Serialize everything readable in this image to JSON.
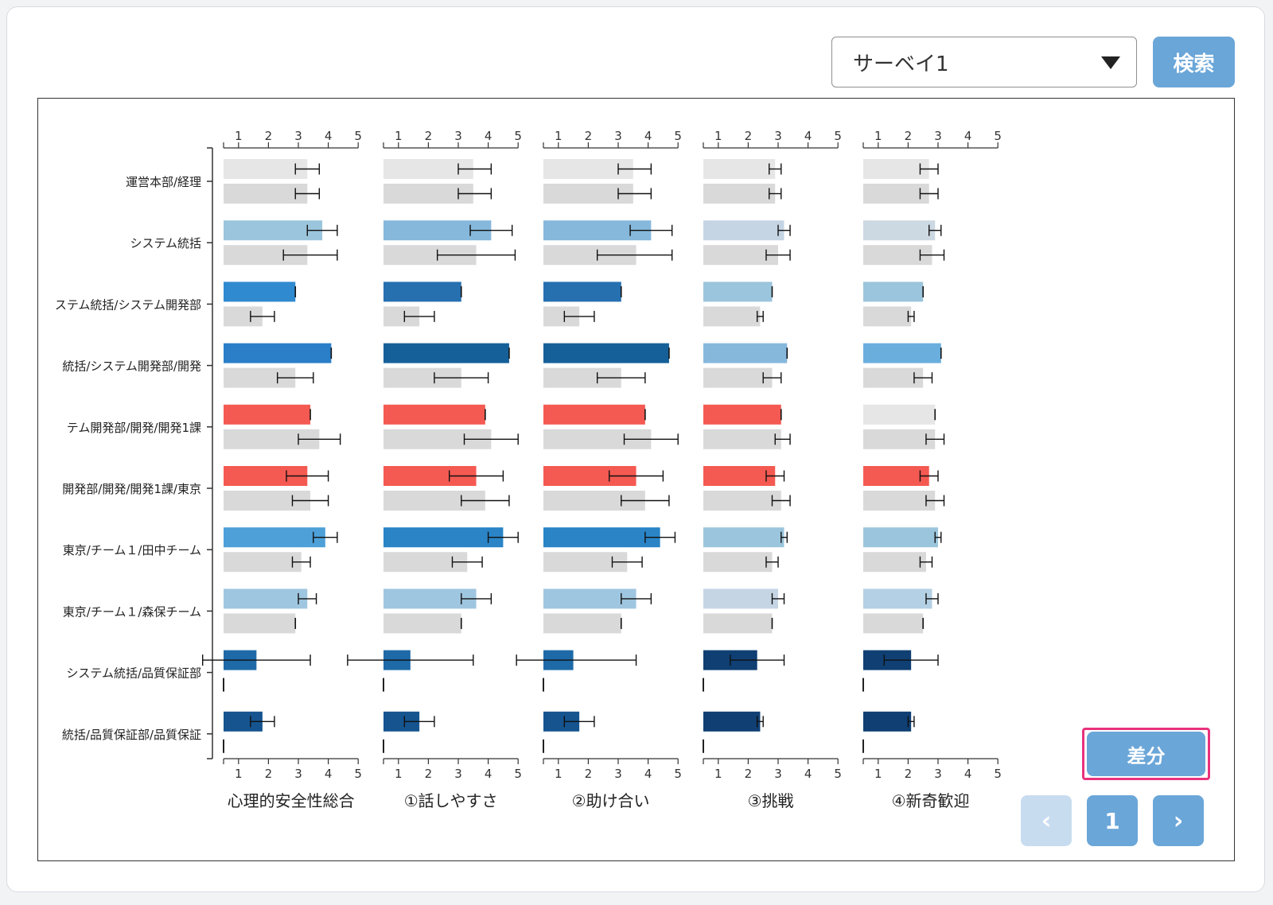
{
  "survey_select": {
    "value": "サーベイ1"
  },
  "search_label": "検索",
  "diff_label": "差分",
  "pagination": {
    "prev": "‹",
    "page": "1",
    "next": "›"
  },
  "colors": {
    "baseline_gray": "#d9d9d9",
    "light_gray": "#e6e6e6",
    "highlight_red": "#f45a52",
    "button_blue": "#6aa6d8",
    "diff_outline": "#e8327c"
  },
  "chart_data": {
    "type": "bar",
    "orientation": "horizontal",
    "xlim": [
      0.5,
      5
    ],
    "xticks": [
      1,
      2,
      3,
      4,
      5
    ],
    "categories": [
      "運営本部/経理",
      "システム統括",
      "ステム統括/システム開発部",
      "統括/システム開発部/開発",
      "テム開発部/開発/開発1課",
      "開発部/開発/開発1課/東京",
      "東京/チーム１/田中チーム",
      "東京/チーム１/森保チーム",
      "システム統括/品質保証部",
      "統括/品質保証部/品質保証"
    ],
    "panels": [
      {
        "title": "心理的安全性総合",
        "bars": [
          {
            "v": 3.3,
            "lo": 2.9,
            "hi": 3.7,
            "c": "#e6e6e6",
            "bv": 3.3,
            "blo": 2.9,
            "bhi": 3.7
          },
          {
            "v": 3.8,
            "lo": 3.3,
            "hi": 4.3,
            "c": "#9bc5dc",
            "bv": 3.3,
            "blo": 2.5,
            "bhi": 4.3
          },
          {
            "v": 2.9,
            "lo": 2.9,
            "hi": 2.9,
            "c": "#2f8ad0",
            "bv": 1.8,
            "blo": 1.4,
            "bhi": 2.2
          },
          {
            "v": 4.1,
            "lo": 4.1,
            "hi": 4.1,
            "c": "#2a7fc8",
            "bv": 2.9,
            "blo": 2.3,
            "bhi": 3.5
          },
          {
            "v": 3.4,
            "lo": 3.4,
            "hi": 3.4,
            "c": "#f45a52",
            "bv": 3.7,
            "blo": 3.0,
            "bhi": 4.4
          },
          {
            "v": 3.3,
            "lo": 2.6,
            "hi": 4.0,
            "c": "#f45a52",
            "bv": 3.4,
            "blo": 2.8,
            "bhi": 4.0
          },
          {
            "v": 3.9,
            "lo": 3.5,
            "hi": 4.3,
            "c": "#4ea0d8",
            "bv": 3.1,
            "blo": 2.8,
            "bhi": 3.4
          },
          {
            "v": 3.3,
            "lo": 3.0,
            "hi": 3.6,
            "c": "#9fc6e0",
            "bv": 2.9,
            "blo": 2.9,
            "bhi": 2.9
          },
          {
            "v": 1.6,
            "lo": -0.2,
            "hi": 3.4,
            "c": "#1e6aa8",
            "bv": null
          },
          {
            "v": 1.8,
            "lo": 1.4,
            "hi": 2.2,
            "c": "#15548f",
            "bv": null
          }
        ]
      },
      {
        "title": "①話しやすさ",
        "bars": [
          {
            "v": 3.5,
            "lo": 3.0,
            "hi": 4.1,
            "c": "#e6e6e6",
            "bv": 3.5,
            "blo": 3.0,
            "bhi": 4.1
          },
          {
            "v": 4.1,
            "lo": 3.4,
            "hi": 4.8,
            "c": "#86b8dc",
            "bv": 3.6,
            "blo": 2.3,
            "bhi": 4.9
          },
          {
            "v": 3.1,
            "lo": 3.1,
            "hi": 3.1,
            "c": "#2670b0",
            "bv": 1.7,
            "blo": 1.2,
            "bhi": 2.2
          },
          {
            "v": 4.7,
            "lo": 4.7,
            "hi": 4.7,
            "c": "#156099",
            "bv": 3.1,
            "blo": 2.2,
            "bhi": 4.0
          },
          {
            "v": 3.9,
            "lo": 3.9,
            "hi": 3.9,
            "c": "#f45a52",
            "bv": 4.1,
            "blo": 3.2,
            "bhi": 5.0
          },
          {
            "v": 3.6,
            "lo": 2.7,
            "hi": 4.5,
            "c": "#f45a52",
            "bv": 3.9,
            "blo": 3.1,
            "bhi": 4.7
          },
          {
            "v": 4.5,
            "lo": 4.0,
            "hi": 5.0,
            "c": "#2a84c6",
            "bv": 3.3,
            "blo": 2.8,
            "bhi": 3.8
          },
          {
            "v": 3.6,
            "lo": 3.1,
            "hi": 4.1,
            "c": "#9fc6e0",
            "bv": 3.1,
            "blo": 3.1,
            "bhi": 3.1
          },
          {
            "v": 1.4,
            "lo": -0.7,
            "hi": 3.5,
            "c": "#1e6aa8",
            "bv": null
          },
          {
            "v": 1.7,
            "lo": 1.2,
            "hi": 2.2,
            "c": "#15548f",
            "bv": null
          }
        ]
      },
      {
        "title": "②助け合い",
        "bars": [
          {
            "v": 3.5,
            "lo": 3.0,
            "hi": 4.1,
            "c": "#e6e6e6",
            "bv": 3.5,
            "blo": 3.0,
            "bhi": 4.1
          },
          {
            "v": 4.1,
            "lo": 3.4,
            "hi": 4.8,
            "c": "#86b8dc",
            "bv": 3.6,
            "blo": 2.3,
            "bhi": 4.8
          },
          {
            "v": 3.1,
            "lo": 3.1,
            "hi": 3.1,
            "c": "#2670b0",
            "bv": 1.7,
            "blo": 1.2,
            "bhi": 2.2
          },
          {
            "v": 4.7,
            "lo": 4.7,
            "hi": 4.7,
            "c": "#156099",
            "bv": 3.1,
            "blo": 2.3,
            "bhi": 3.9
          },
          {
            "v": 3.9,
            "lo": 3.9,
            "hi": 3.9,
            "c": "#f45a52",
            "bv": 4.1,
            "blo": 3.2,
            "bhi": 5.0
          },
          {
            "v": 3.6,
            "lo": 2.7,
            "hi": 4.5,
            "c": "#f45a52",
            "bv": 3.9,
            "blo": 3.1,
            "bhi": 4.7
          },
          {
            "v": 4.4,
            "lo": 3.9,
            "hi": 4.9,
            "c": "#2a84c6",
            "bv": 3.3,
            "blo": 2.8,
            "bhi": 3.8
          },
          {
            "v": 3.6,
            "lo": 3.1,
            "hi": 4.1,
            "c": "#9fc6e0",
            "bv": 3.1,
            "blo": 3.1,
            "bhi": 3.1
          },
          {
            "v": 1.5,
            "lo": -0.4,
            "hi": 3.6,
            "c": "#1e6aa8",
            "bv": null
          },
          {
            "v": 1.7,
            "lo": 1.2,
            "hi": 2.2,
            "c": "#15548f",
            "bv": null
          }
        ]
      },
      {
        "title": "③挑戦",
        "bars": [
          {
            "v": 2.9,
            "lo": 2.7,
            "hi": 3.1,
            "c": "#e6e6e6",
            "bv": 2.9,
            "blo": 2.7,
            "bhi": 3.1
          },
          {
            "v": 3.2,
            "lo": 3.0,
            "hi": 3.4,
            "c": "#c5d5e4",
            "bv": 3.0,
            "blo": 2.6,
            "bhi": 3.4
          },
          {
            "v": 2.8,
            "lo": 2.8,
            "hi": 2.8,
            "c": "#9bc5dc",
            "bv": 2.4,
            "blo": 2.3,
            "bhi": 2.5
          },
          {
            "v": 3.3,
            "lo": 3.3,
            "hi": 3.3,
            "c": "#86b8dc",
            "bv": 2.8,
            "blo": 2.5,
            "bhi": 3.1
          },
          {
            "v": 3.1,
            "lo": 3.1,
            "hi": 3.1,
            "c": "#f45a52",
            "bv": 3.1,
            "blo": 2.9,
            "bhi": 3.4
          },
          {
            "v": 2.9,
            "lo": 2.6,
            "hi": 3.2,
            "c": "#f45a52",
            "bv": 3.1,
            "blo": 2.8,
            "bhi": 3.4
          },
          {
            "v": 3.2,
            "lo": 3.1,
            "hi": 3.3,
            "c": "#9bc5dc",
            "bv": 2.8,
            "blo": 2.6,
            "bhi": 3.0
          },
          {
            "v": 3.0,
            "lo": 2.8,
            "hi": 3.2,
            "c": "#c5d5e4",
            "bv": 2.8,
            "blo": 2.8,
            "bhi": 2.8
          },
          {
            "v": 2.3,
            "lo": 1.4,
            "hi": 3.2,
            "c": "#0f3f73",
            "bv": null
          },
          {
            "v": 2.4,
            "lo": 2.3,
            "hi": 2.5,
            "c": "#0f3f73",
            "bv": null
          }
        ]
      },
      {
        "title": "④新奇歓迎",
        "bars": [
          {
            "v": 2.7,
            "lo": 2.4,
            "hi": 3.0,
            "c": "#e6e6e6",
            "bv": 2.7,
            "blo": 2.4,
            "bhi": 3.0
          },
          {
            "v": 2.9,
            "lo": 2.7,
            "hi": 3.1,
            "c": "#ccd8e2",
            "bv": 2.8,
            "blo": 2.4,
            "bhi": 3.2
          },
          {
            "v": 2.5,
            "lo": 2.5,
            "hi": 2.5,
            "c": "#9bc5dc",
            "bv": 2.1,
            "blo": 2.0,
            "bhi": 2.2
          },
          {
            "v": 3.1,
            "lo": 3.1,
            "hi": 3.1,
            "c": "#6aaede",
            "bv": 2.5,
            "blo": 2.2,
            "bhi": 2.8
          },
          {
            "v": 2.9,
            "lo": 2.9,
            "hi": 2.9,
            "c": "#e6e6e6",
            "bv": 2.9,
            "blo": 2.6,
            "bhi": 3.2
          },
          {
            "v": 2.7,
            "lo": 2.4,
            "hi": 3.0,
            "c": "#f45a52",
            "bv": 2.9,
            "blo": 2.6,
            "bhi": 3.2
          },
          {
            "v": 3.0,
            "lo": 2.9,
            "hi": 3.1,
            "c": "#9bc5dc",
            "bv": 2.6,
            "blo": 2.4,
            "bhi": 2.8
          },
          {
            "v": 2.8,
            "lo": 2.6,
            "hi": 3.0,
            "c": "#b4d0e4",
            "bv": 2.5,
            "blo": 2.5,
            "bhi": 2.5
          },
          {
            "v": 2.1,
            "lo": 1.2,
            "hi": 3.0,
            "c": "#0f3f73",
            "bv": null
          },
          {
            "v": 2.1,
            "lo": 2.0,
            "hi": 2.2,
            "c": "#0f3f73",
            "bv": null
          }
        ]
      }
    ]
  }
}
